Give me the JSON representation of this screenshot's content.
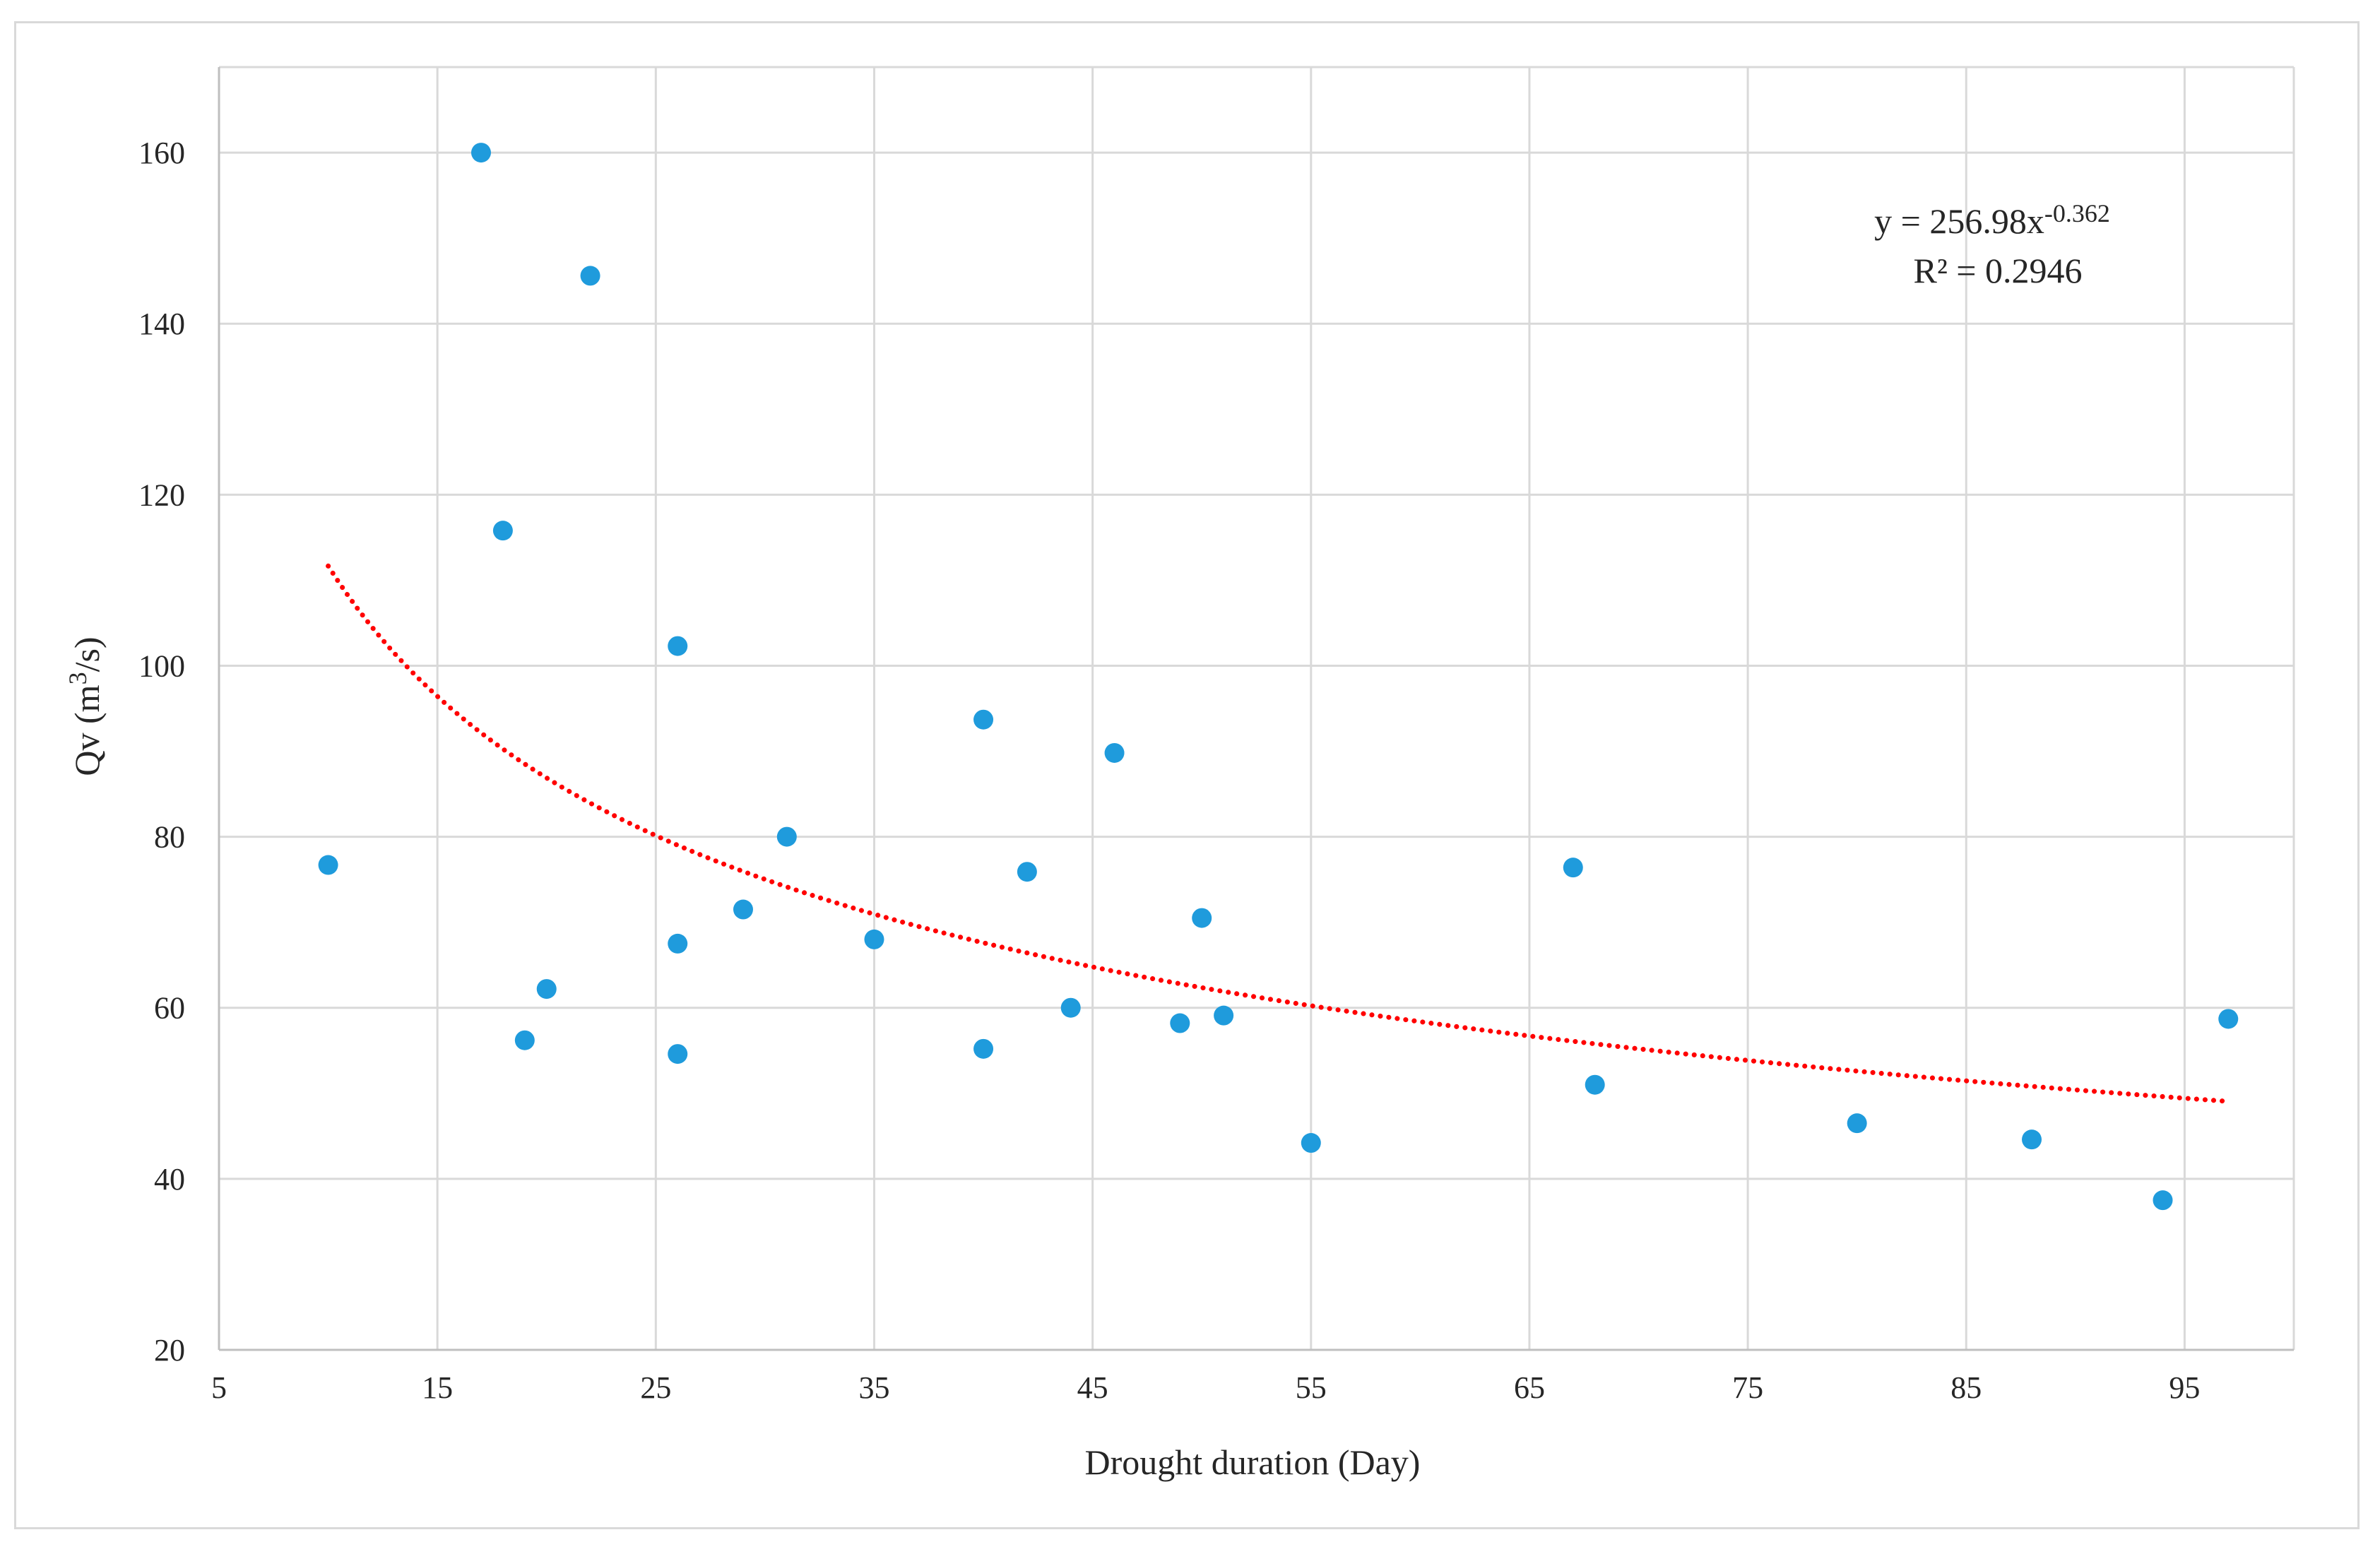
{
  "chart_data": {
    "type": "scatter",
    "title": "",
    "xlabel": "Drought duration (Day)",
    "ylabel": {
      "prefix": "Qv (m",
      "sup": "3",
      "suffix": "/s)"
    },
    "xlim": [
      5,
      100
    ],
    "ylim": [
      20,
      170
    ],
    "xticks": [
      5,
      15,
      25,
      35,
      45,
      55,
      65,
      75,
      85,
      95
    ],
    "yticks": [
      20,
      40,
      60,
      80,
      100,
      120,
      140,
      160
    ],
    "grid": true,
    "series": [
      {
        "name": "Qv",
        "color": "#1f9bdc",
        "points": [
          {
            "x": 10,
            "y": 76.7
          },
          {
            "x": 17,
            "y": 160
          },
          {
            "x": 18,
            "y": 115.8
          },
          {
            "x": 19,
            "y": 56.2
          },
          {
            "x": 20,
            "y": 62.2
          },
          {
            "x": 22,
            "y": 145.6
          },
          {
            "x": 26,
            "y": 102.3
          },
          {
            "x": 26,
            "y": 67.5
          },
          {
            "x": 26,
            "y": 54.6
          },
          {
            "x": 29,
            "y": 71.5
          },
          {
            "x": 31,
            "y": 80
          },
          {
            "x": 35,
            "y": 68
          },
          {
            "x": 40,
            "y": 93.7
          },
          {
            "x": 40,
            "y": 55.2
          },
          {
            "x": 42,
            "y": 75.9
          },
          {
            "x": 44,
            "y": 60
          },
          {
            "x": 46,
            "y": 89.8
          },
          {
            "x": 49,
            "y": 58.2
          },
          {
            "x": 50,
            "y": 70.5
          },
          {
            "x": 51,
            "y": 59.1
          },
          {
            "x": 55,
            "y": 44.2
          },
          {
            "x": 67,
            "y": 76.4
          },
          {
            "x": 68,
            "y": 51
          },
          {
            "x": 80,
            "y": 46.5
          },
          {
            "x": 88,
            "y": 44.6
          },
          {
            "x": 94,
            "y": 37.5
          },
          {
            "x": 97,
            "y": 58.7
          }
        ]
      }
    ],
    "trendline": {
      "type": "power",
      "a": 256.98,
      "b": -0.362,
      "x_from": 10,
      "x_to": 97,
      "color": "#ff0000",
      "style": "dotted"
    },
    "annotation": {
      "equation_prefix": "y = 256.98x",
      "equation_exponent": "-0.362",
      "r_squared": "R² = 0.2946"
    }
  }
}
